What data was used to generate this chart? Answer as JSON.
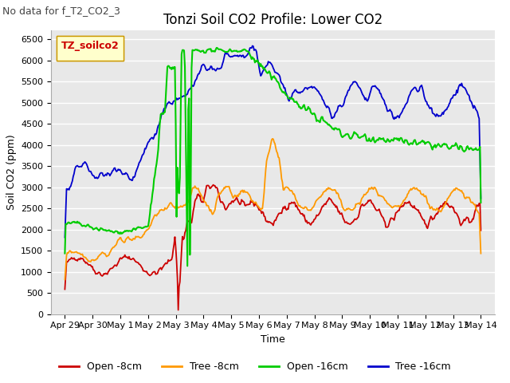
{
  "title": "Tonzi Soil CO2 Profile: Lower CO2",
  "subtitle": "No data for f_T2_CO2_3",
  "xlabel": "Time",
  "ylabel": "Soil CO2 (ppm)",
  "ylim": [
    0,
    6700
  ],
  "yticks": [
    0,
    500,
    1000,
    1500,
    2000,
    2500,
    3000,
    3500,
    4000,
    4500,
    5000,
    5500,
    6000,
    6500
  ],
  "x_labels": [
    "Apr 29",
    "Apr 30",
    "May 1",
    "May 2",
    "May 3",
    "May 4",
    "May 5",
    "May 6",
    "May 7",
    "May 8",
    "May 9",
    "May 10",
    "May 11",
    "May 12",
    "May 13",
    "May 14"
  ],
  "legend_label": "TZ_soilco2",
  "legend_entries": [
    "Open -8cm",
    "Tree -8cm",
    "Open -16cm",
    "Tree -16cm"
  ],
  "legend_colors": [
    "#cc0000",
    "#ff9900",
    "#00cc00",
    "#0000cc"
  ],
  "fig_bg": "#ffffff",
  "plot_bg": "#e8e8e8",
  "grid_color": "#ffffff",
  "title_fontsize": 12,
  "label_fontsize": 9,
  "tick_fontsize": 8,
  "subtitle_fontsize": 9,
  "line_width": 1.3,
  "legend_box_bg": "#ffffcc",
  "legend_box_edge": "#cc9900",
  "legend_title_color": "#cc0000"
}
